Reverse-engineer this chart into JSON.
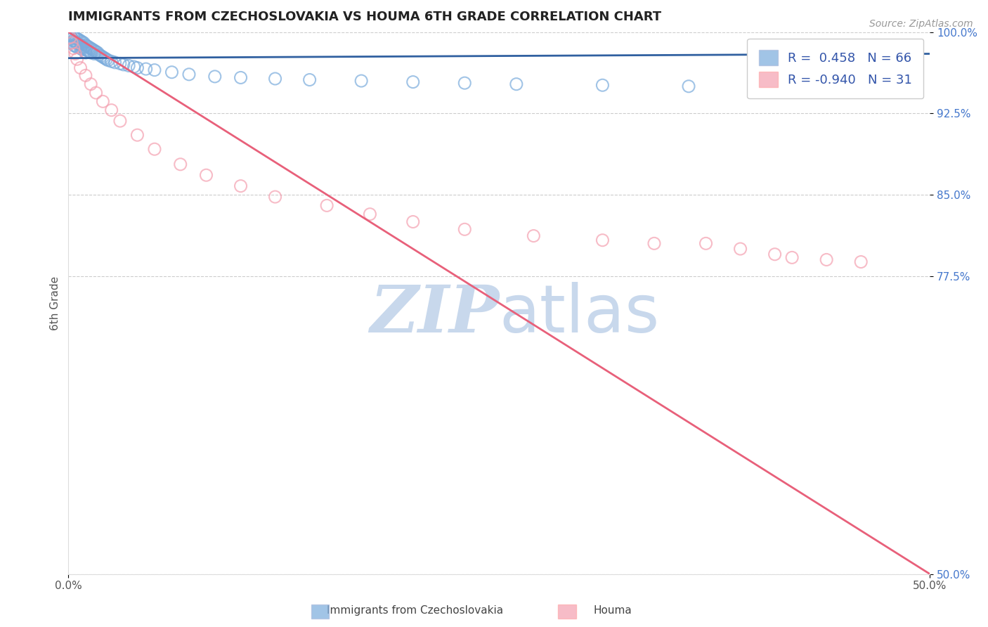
{
  "title": "IMMIGRANTS FROM CZECHOSLOVAKIA VS HOUMA 6TH GRADE CORRELATION CHART",
  "source_text": "Source: ZipAtlas.com",
  "ylabel": "6th Grade",
  "xlim": [
    0.0,
    0.5
  ],
  "ylim": [
    0.5,
    1.0
  ],
  "y_ticks": [
    0.5,
    0.775,
    0.85,
    0.925,
    1.0
  ],
  "y_tick_labels": [
    "50.0%",
    "77.5%",
    "85.0%",
    "92.5%",
    "100.0%"
  ],
  "blue_R": 0.458,
  "blue_N": 66,
  "pink_R": -0.94,
  "pink_N": 31,
  "blue_color": "#7AABDC",
  "pink_color": "#F4A0B0",
  "blue_line_color": "#3060A0",
  "pink_line_color": "#E8607A",
  "watermark_color": "#C8D8EC",
  "legend_label_blue": "Immigrants from Czechoslovakia",
  "legend_label_pink": "Houma",
  "background_color": "#FFFFFF",
  "grid_color": "#CCCCCC",
  "blue_scatter_x": [
    0.001,
    0.002,
    0.002,
    0.003,
    0.003,
    0.003,
    0.004,
    0.004,
    0.004,
    0.005,
    0.005,
    0.005,
    0.006,
    0.006,
    0.007,
    0.007,
    0.007,
    0.008,
    0.008,
    0.008,
    0.009,
    0.009,
    0.01,
    0.01,
    0.01,
    0.011,
    0.011,
    0.012,
    0.012,
    0.013,
    0.013,
    0.014,
    0.015,
    0.015,
    0.016,
    0.017,
    0.018,
    0.019,
    0.02,
    0.021,
    0.022,
    0.023,
    0.025,
    0.027,
    0.03,
    0.032,
    0.035,
    0.038,
    0.04,
    0.045,
    0.05,
    0.06,
    0.07,
    0.085,
    0.1,
    0.12,
    0.14,
    0.17,
    0.2,
    0.23,
    0.26,
    0.31,
    0.36,
    0.4,
    0.42,
    0.45
  ],
  "blue_scatter_y": [
    0.997,
    0.994,
    0.99,
    0.996,
    0.992,
    0.988,
    0.995,
    0.991,
    0.987,
    0.994,
    0.99,
    0.986,
    0.993,
    0.989,
    0.992,
    0.988,
    0.985,
    0.991,
    0.987,
    0.984,
    0.99,
    0.986,
    0.988,
    0.984,
    0.981,
    0.987,
    0.983,
    0.986,
    0.982,
    0.985,
    0.981,
    0.984,
    0.983,
    0.98,
    0.982,
    0.981,
    0.979,
    0.978,
    0.977,
    0.976,
    0.975,
    0.974,
    0.973,
    0.972,
    0.971,
    0.97,
    0.969,
    0.968,
    0.967,
    0.966,
    0.965,
    0.963,
    0.961,
    0.959,
    0.958,
    0.957,
    0.956,
    0.955,
    0.954,
    0.953,
    0.952,
    0.951,
    0.95,
    0.95,
    0.951,
    0.952
  ],
  "pink_scatter_x": [
    0.001,
    0.002,
    0.003,
    0.004,
    0.005,
    0.007,
    0.01,
    0.013,
    0.016,
    0.02,
    0.025,
    0.03,
    0.04,
    0.05,
    0.065,
    0.08,
    0.1,
    0.12,
    0.15,
    0.175,
    0.2,
    0.23,
    0.27,
    0.31,
    0.34,
    0.37,
    0.39,
    0.41,
    0.42,
    0.44,
    0.46
  ],
  "pink_scatter_y": [
    0.995,
    0.99,
    0.985,
    0.98,
    0.975,
    0.967,
    0.96,
    0.952,
    0.944,
    0.936,
    0.928,
    0.918,
    0.905,
    0.892,
    0.878,
    0.868,
    0.858,
    0.848,
    0.84,
    0.832,
    0.825,
    0.818,
    0.812,
    0.808,
    0.805,
    0.805,
    0.8,
    0.795,
    0.792,
    0.79,
    0.788
  ],
  "blue_line_x0": 0.0,
  "blue_line_y0": 0.976,
  "blue_line_x1": 0.5,
  "blue_line_y1": 0.98,
  "pink_line_x0": 0.0,
  "pink_line_y0": 1.0,
  "pink_line_x1": 0.5,
  "pink_line_y1": 0.5
}
